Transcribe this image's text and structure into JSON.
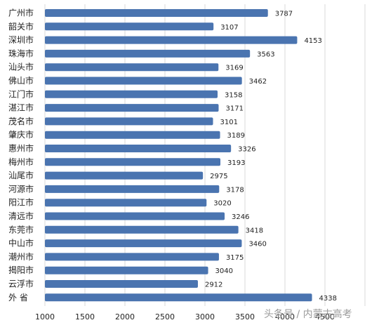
{
  "chart_data": {
    "type": "bar",
    "orientation": "horizontal",
    "categories": [
      "广州市",
      "韶关市",
      "深圳市",
      "珠海市",
      "汕头市",
      "佛山市",
      "江门市",
      "湛江市",
      "茂名市",
      "肇庆市",
      "惠州市",
      "梅州市",
      "汕尾市",
      "河源市",
      "阳江市",
      "清远市",
      "东莞市",
      "中山市",
      "潮州市",
      "揭阳市",
      "云浮市",
      "外 省"
    ],
    "values": [
      3787,
      3107,
      4153,
      3563,
      3169,
      3462,
      3158,
      3171,
      3101,
      3189,
      3326,
      3193,
      2975,
      3178,
      3020,
      3246,
      3418,
      3460,
      3175,
      3040,
      2912,
      4338
    ],
    "xlim": [
      1000,
      5000
    ],
    "x_ticks": [
      "1000",
      "1500",
      "2000",
      "2500",
      "3000",
      "3500",
      "4000",
      "4500"
    ],
    "grid": true,
    "bar_color": "#4a74b0",
    "title": "",
    "xlabel": "",
    "ylabel": ""
  },
  "watermark": "头条号 / 内蒙古高考"
}
